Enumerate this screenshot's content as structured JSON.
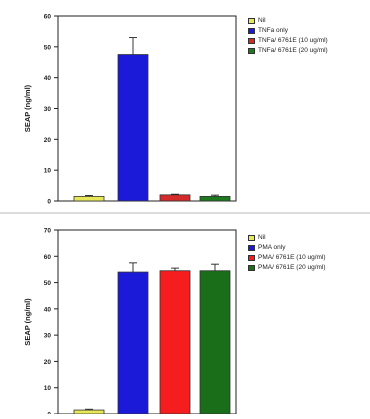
{
  "chart_data": [
    {
      "type": "bar",
      "ylabel": "SEAP (ng/ml)",
      "ylim": [
        0,
        60
      ],
      "yticks": [
        0,
        10,
        20,
        30,
        40,
        50,
        60
      ],
      "categories": [
        "Nil",
        "TNFa only",
        "TNFa/ 6761E (10 ug/ml)",
        "TNFa/ 6761E (20 ug/ml)"
      ],
      "values": [
        1.5,
        47.5,
        2.0,
        1.5
      ],
      "errors": [
        0.3,
        5.5,
        0.2,
        0.4
      ],
      "colors": [
        "#e6e85a",
        "#1a1ad8",
        "#d42a2a",
        "#1f7a1f"
      ],
      "legend": [
        "Nil",
        "TNFa only",
        "TNFa/ 6761E (10 ug/ml)",
        "TNFa/ 6761E (20 ug/ml)"
      ],
      "legend_position": "right",
      "grid": false
    },
    {
      "type": "bar",
      "ylabel": "SEAP (ng/ml)",
      "ylim": [
        0,
        70
      ],
      "yticks": [
        0,
        10,
        20,
        30,
        40,
        50,
        60,
        70
      ],
      "categories": [
        "Nil",
        "PMA only",
        "PMA/ 6761E (10 ug/ml)",
        "PMA/ 6761E (20 ug/ml)"
      ],
      "values": [
        1.5,
        54,
        54.5,
        54.5
      ],
      "errors": [
        0.3,
        3.5,
        1.0,
        2.5
      ],
      "colors": [
        "#e6e85a",
        "#1a1ad8",
        "#f51d1d",
        "#1a6e1a"
      ],
      "legend": [
        "Nil",
        "PMA only",
        "PMA/ 6761E (10 ug/ml)",
        "PMA/ 6761E (20 ug/ml)"
      ],
      "legend_position": "right",
      "grid": false
    }
  ]
}
